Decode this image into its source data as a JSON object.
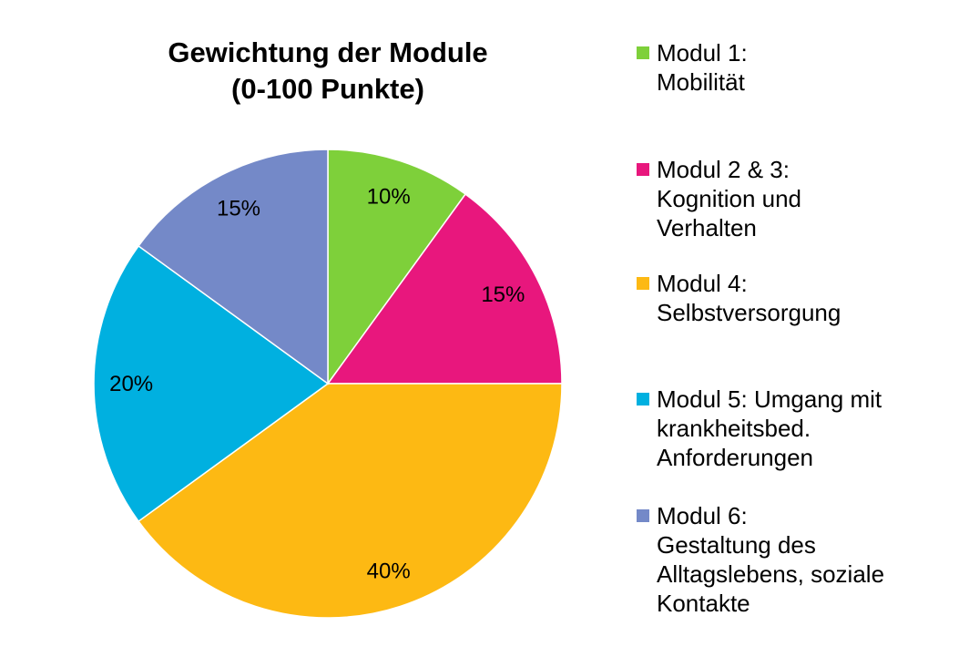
{
  "chart_data": {
    "type": "pie",
    "title": "Gewichtung der Module\n(0-100 Punkte)",
    "title_lines": [
      "Gewichtung der Module",
      "(0-100 Punkte)"
    ],
    "legend_position": "right",
    "slices": [
      {
        "label": "Modul 1:\nMobilität",
        "value": 10,
        "data_label": "10%",
        "color": "#7ed03a"
      },
      {
        "label": "Modul 2 & 3:\nKognition und\nVerhalten",
        "value": 15,
        "data_label": "15%",
        "color": "#e8177d"
      },
      {
        "label": "Modul 4:\nSelbstversorgung",
        "value": 40,
        "data_label": "40%",
        "color": "#fdb913"
      },
      {
        "label": "Modul 5: Umgang mit\nkrankheitsbed.\nAnforderungen",
        "value": 20,
        "data_label": "20%",
        "color": "#00b0e0"
      },
      {
        "label": "Modul 6:\nGestaltung des\nAlltagslebens, soziale\nKontakte",
        "value": 15,
        "data_label": "15%",
        "color": "#7489c8"
      }
    ]
  }
}
